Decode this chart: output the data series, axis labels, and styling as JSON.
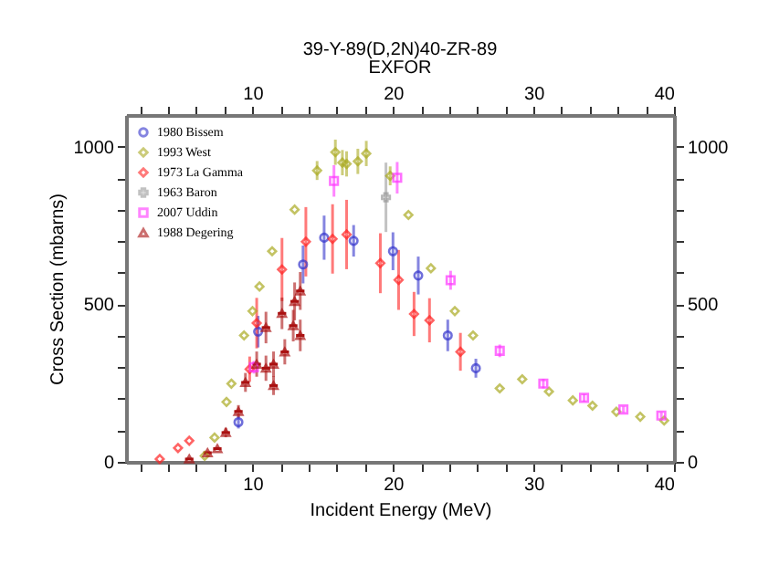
{
  "chart_data": {
    "type": "scatter",
    "title": "39-Y-89(D,2N)40-ZR-89",
    "subtitle": "EXFOR",
    "xlabel": "Incident Energy (MeV)",
    "ylabel": "Cross Section (mbarns)",
    "xlim": [
      1,
      40
    ],
    "ylim": [
      0,
      1100
    ],
    "x2lim": [
      1,
      40
    ],
    "y2lim": [
      0,
      1100
    ],
    "xticks": [
      {
        "value": 2,
        "label": null
      },
      {
        "value": 4,
        "label": null
      },
      {
        "value": 6,
        "label": null
      },
      {
        "value": 8,
        "label": null
      },
      10,
      {
        "value": 12,
        "label": null
      },
      {
        "value": 14,
        "label": null
      },
      {
        "value": 16,
        "label": null
      },
      {
        "value": 18,
        "label": null
      },
      20,
      {
        "value": 22,
        "label": null
      },
      {
        "value": 24,
        "label": null
      },
      {
        "value": 26,
        "label": null
      },
      {
        "value": 28,
        "label": null
      },
      30,
      {
        "value": 32,
        "label": null
      },
      {
        "value": 34,
        "label": null
      },
      {
        "value": 36,
        "label": null
      },
      {
        "value": 38,
        "label": null
      },
      40
    ],
    "x2ticks": [
      {
        "value": 2,
        "label": null
      },
      {
        "value": 4,
        "label": null
      },
      {
        "value": 6,
        "label": null
      },
      {
        "value": 8,
        "label": null
      },
      10,
      {
        "value": 12,
        "label": null
      },
      {
        "value": 14,
        "label": null
      },
      {
        "value": 16,
        "label": null
      },
      {
        "value": 18,
        "label": null
      },
      20,
      {
        "value": 22,
        "label": null
      },
      {
        "value": 24,
        "label": null
      },
      {
        "value": 26,
        "label": null
      },
      {
        "value": 28,
        "label": null
      },
      30,
      {
        "value": 32,
        "label": null
      },
      {
        "value": 34,
        "label": null
      },
      {
        "value": 36,
        "label": null
      },
      {
        "value": 38,
        "label": null
      },
      40
    ],
    "yticks": [
      0,
      {
        "value": 100,
        "label": null
      },
      {
        "value": 200,
        "label": null
      },
      {
        "value": 300,
        "label": null
      },
      {
        "value": 400,
        "label": null
      },
      500,
      {
        "value": 600,
        "label": null
      },
      {
        "value": 700,
        "label": null
      },
      {
        "value": 800,
        "label": null
      },
      {
        "value": 900,
        "label": null
      },
      1000
    ],
    "y2ticks": [
      0,
      {
        "value": 100,
        "label": null
      },
      {
        "value": 200,
        "label": null
      },
      {
        "value": 300,
        "label": null
      },
      {
        "value": 400,
        "label": null
      },
      500,
      {
        "value": 600,
        "label": null
      },
      {
        "value": 700,
        "label": null
      },
      {
        "value": 800,
        "label": null
      },
      {
        "value": 900,
        "label": null
      },
      1000
    ],
    "legend": "top left",
    "series": [
      {
        "name": "1980 Bissem",
        "color": "#3333cc",
        "marker": "circle",
        "x": [
          9.0,
          10.4,
          13.6,
          15.1,
          17.2,
          20.0,
          21.8,
          23.9,
          25.9
        ],
        "values": [
          126,
          413,
          626,
          711,
          701,
          668,
          591,
          401,
          297
        ],
        "errors": [
          20,
          50,
          60,
          70,
          50,
          60,
          60,
          50,
          30
        ]
      },
      {
        "name": "1993 West",
        "color": "#aaaa22",
        "marker": "diamond",
        "x": [
          6.6,
          7.3,
          8.15,
          8.5,
          9.4,
          10.0,
          10.5,
          11.4,
          13.0,
          14.6,
          15.9,
          16.4,
          16.7,
          17.5,
          18.1,
          19.8,
          21.1,
          22.7,
          24.4,
          25.7,
          27.6,
          29.2,
          31.1,
          32.8,
          34.2,
          35.9,
          37.6,
          39.3
        ],
        "values": [
          19,
          77,
          190,
          248,
          401,
          478,
          556,
          668,
          800,
          924,
          982,
          949,
          945,
          953,
          978,
          907,
          783,
          614,
          478,
          401,
          233,
          262,
          223,
          195,
          178,
          159,
          143,
          131
        ],
        "errors": [
          null,
          null,
          null,
          null,
          null,
          null,
          null,
          null,
          null,
          30,
          40,
          40,
          40,
          40,
          40,
          30,
          null,
          null,
          null,
          null,
          null,
          null,
          null,
          null,
          null,
          null,
          null,
          null
        ]
      },
      {
        "name": "1973 La Gamma",
        "color": "#ff2222",
        "marker": "diamond",
        "x": [
          3.4,
          4.7,
          5.5,
          9.8,
          10.3,
          12.1,
          13.8,
          15.7,
          16.7,
          19.1,
          20.4,
          21.5,
          22.6,
          24.8
        ],
        "values": [
          9,
          44,
          67,
          294,
          440,
          610,
          698,
          707,
          721,
          630,
          577,
          469,
          449,
          349
        ],
        "errors": [
          null,
          null,
          null,
          40,
          80,
          100,
          110,
          110,
          110,
          95,
          95,
          70,
          70,
          60
        ]
      },
      {
        "name": "1963 Baron",
        "color": "#999999",
        "marker": "cross",
        "x": [
          19.5
        ],
        "values": [
          839
        ],
        "errors": [
          110
        ]
      },
      {
        "name": "2007 Uddin",
        "color": "#ff33ff",
        "marker": "square",
        "x": [
          10.1,
          15.8,
          20.3,
          24.1,
          27.6,
          30.7,
          33.6,
          36.4,
          39.1
        ],
        "values": [
          300,
          891,
          901,
          576,
          352,
          248,
          203,
          166,
          147
        ],
        "errors": [
          20,
          50,
          50,
          30,
          20,
          15,
          12,
          10,
          10
        ]
      },
      {
        "name": "1988 Degering",
        "color": "#aa1111",
        "marker": "triangle",
        "x": [
          5.5,
          6.8,
          7.5,
          8.1,
          9.0,
          9.5,
          10.3,
          10.96,
          10.96,
          11.5,
          11.5,
          12.1,
          12.3,
          12.9,
          13.0,
          13.4,
          13.4
        ],
        "values": [
          9,
          29,
          42,
          93,
          160,
          252,
          310,
          297,
          426,
          310,
          242,
          471,
          349,
          432,
          509,
          542,
          401
        ],
        "errors": [
          null,
          null,
          null,
          15,
          20,
          30,
          40,
          40,
          50,
          40,
          30,
          50,
          40,
          50,
          60,
          60,
          50
        ],
        "xerrors": [
          0.3,
          0.3,
          0.3,
          0.3,
          0.3,
          0.3,
          0.3,
          0.3,
          0.3,
          0.3,
          0.3,
          0.3,
          0.3,
          0.3,
          0.3,
          0.3,
          0.3
        ]
      }
    ]
  }
}
